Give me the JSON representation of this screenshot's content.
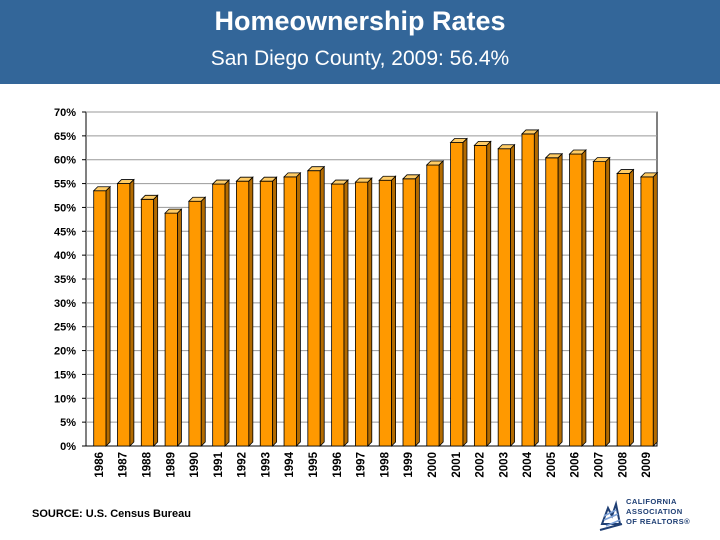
{
  "title": "Homeownership Rates",
  "subtitle": "San Diego County, 2009: 56.4%",
  "source": "SOURCE: U.S. Census Bureau",
  "logo": {
    "line1": "CALIFORNIA",
    "line2": "ASSOCIATION",
    "line3": "OF REALTORS®"
  },
  "colors": {
    "header": "#336699",
    "bar": "#ff9900",
    "bar_edge": "#000000",
    "plot_bg": "#ffffff",
    "grid": "#999999"
  },
  "chart_data": {
    "type": "bar",
    "categories": [
      "1986",
      "1987",
      "1988",
      "1989",
      "1990",
      "1991",
      "1992",
      "1993",
      "1994",
      "1995",
      "1996",
      "1997",
      "1998",
      "1999",
      "2000",
      "2001",
      "2002",
      "2003",
      "2004",
      "2005",
      "2006",
      "2007",
      "2008",
      "2009"
    ],
    "values": [
      53.5,
      55.0,
      51.7,
      48.8,
      51.3,
      54.9,
      55.5,
      55.5,
      56.4,
      57.7,
      54.9,
      55.3,
      55.7,
      56.0,
      58.9,
      63.6,
      63.0,
      62.3,
      65.4,
      60.4,
      61.2,
      59.6,
      57.1,
      56.4
    ],
    "yticks": [
      "0%",
      "5%",
      "10%",
      "15%",
      "20%",
      "25%",
      "30%",
      "35%",
      "40%",
      "45%",
      "50%",
      "55%",
      "60%",
      "65%",
      "70%"
    ],
    "ylim": [
      0,
      70
    ],
    "grid": true,
    "legend": "none"
  }
}
